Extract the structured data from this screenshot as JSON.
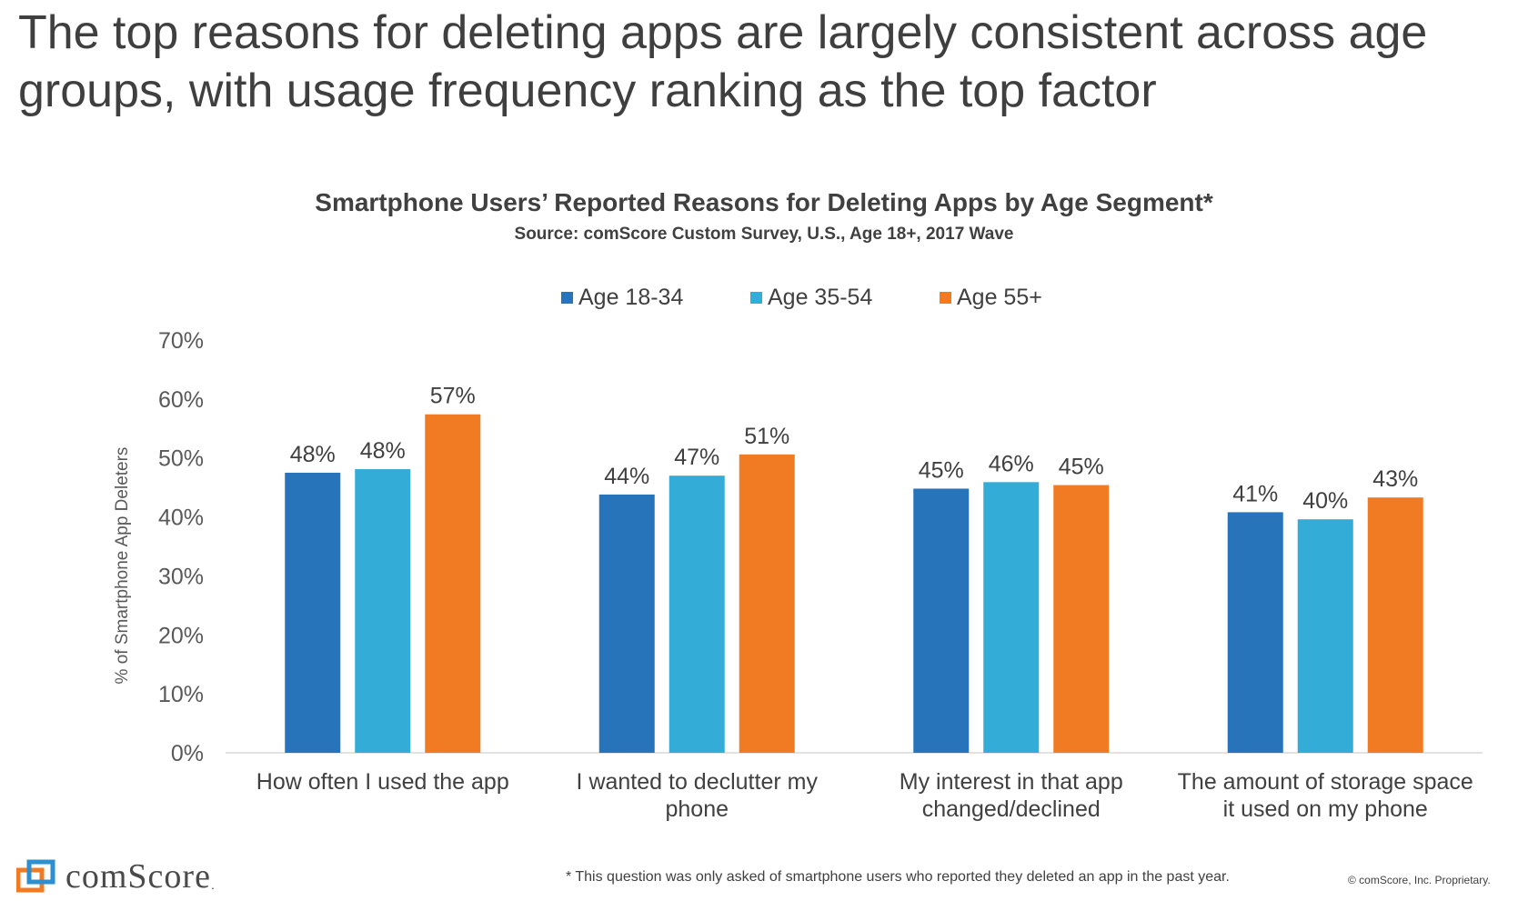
{
  "headline": {
    "line1": "The top reasons for deleting apps are largely consistent across age",
    "line2": "groups, with usage frequency ranking as the top factor"
  },
  "chart_data": {
    "type": "bar",
    "title": "Smartphone Users’ Reported Reasons for Deleting Apps by Age Segment*",
    "subtitle": "Source: comScore Custom Survey, U.S., Age 18+, 2017 Wave",
    "xlabel": "",
    "ylabel": "% of Smartphone App Deleters",
    "ylim": [
      0,
      70
    ],
    "yticks": [
      "0%",
      "10%",
      "20%",
      "30%",
      "40%",
      "50%",
      "60%",
      "70%"
    ],
    "categories": [
      [
        "How often I used the app"
      ],
      [
        "I wanted to declutter my",
        "phone"
      ],
      [
        "My interest in that app",
        "changed/declined"
      ],
      [
        "The amount of storage space",
        "it used on my phone"
      ]
    ],
    "series": [
      {
        "name": "Age 18-34",
        "color": "#2774bb",
        "values": [
          47.5,
          43.8,
          44.8,
          40.8
        ],
        "labels": [
          "48%",
          "44%",
          "45%",
          "41%"
        ]
      },
      {
        "name": "Age 35-54",
        "color": "#33acd8",
        "values": [
          48.1,
          47.0,
          45.9,
          39.6
        ],
        "labels": [
          "48%",
          "47%",
          "46%",
          "40%"
        ]
      },
      {
        "name": "Age 55+",
        "color": "#f07b22",
        "values": [
          57.4,
          50.6,
          45.4,
          43.3
        ],
        "labels": [
          "57%",
          "51%",
          "45%",
          "43%"
        ]
      }
    ],
    "grid": false,
    "legend_position": "top-center"
  },
  "footer": {
    "logo_text": "comScore",
    "logo_suffix": ".",
    "footnote": "* This question was only asked of smartphone users who reported they deleted an app in the past year.",
    "copyright": "© comScore, Inc. Proprietary."
  }
}
